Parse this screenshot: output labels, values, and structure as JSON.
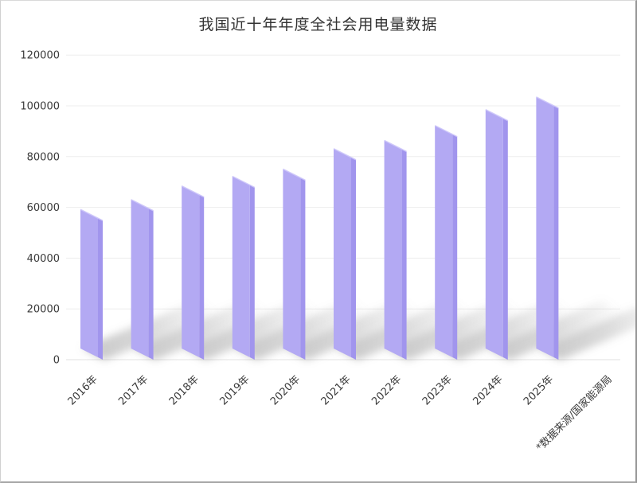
{
  "frame": {
    "background": "#ffffff"
  },
  "chart_data": {
    "type": "bar",
    "title": "我国近十年年度全社会用电量数据",
    "source_note": "*数据来源/国家能源局",
    "categories": [
      "2016年",
      "2017年",
      "2018年",
      "2019年",
      "2020年",
      "2021年",
      "2022年",
      "2023年",
      "2024年",
      "2025年"
    ],
    "values": [
      59198,
      63077,
      68449,
      72255,
      75110,
      83128,
      86372,
      92241,
      98521,
      103500
    ],
    "xlabel": "",
    "ylabel": "",
    "ylim": [
      0,
      120000
    ],
    "yticks": [
      0,
      20000,
      40000,
      60000,
      80000,
      100000,
      120000
    ],
    "ytick_labels": [
      "0",
      "20000",
      "40000",
      "60000",
      "80000",
      "100000",
      "120000"
    ],
    "grid": true,
    "legend": "none",
    "style": "3d-oblique-bars-with-floor-shadows",
    "x_label_rotation_deg": -45,
    "colors": {
      "bar_face": "#b3a9f3",
      "bar_side": "#a195ed",
      "bar_top_highlight": "#ccc5f9",
      "shadow": "#999999",
      "gridline": "#ededed",
      "axis_line": "#e2e2e2",
      "text": "#3a3a3a",
      "background": "#ffffff"
    }
  }
}
